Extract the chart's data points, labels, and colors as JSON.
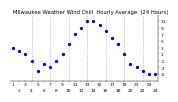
{
  "title": "Milwaukee Weather Wind Chill  Hourly Average  (24 Hours)",
  "hours": [
    1,
    2,
    3,
    4,
    5,
    6,
    7,
    8,
    9,
    10,
    11,
    12,
    13,
    14,
    15,
    16,
    17,
    18,
    19,
    20,
    21,
    22,
    23,
    24
  ],
  "wind_chill": [
    3,
    2,
    1,
    -1,
    -4,
    -2,
    -3,
    -1,
    1,
    4,
    7,
    9,
    11,
    11,
    10,
    8,
    6,
    4,
    1,
    -2,
    -3,
    -4,
    -5,
    -5
  ],
  "dot_color": "#0000cc",
  "bg_color": "#ffffff",
  "grid_color": "#999999",
  "title_color": "#000000",
  "ylim": [
    -7,
    13
  ],
  "yticks": [
    11,
    9,
    7,
    5,
    3,
    1,
    -1,
    -3,
    -5
  ],
  "grid_positions": [
    4,
    7,
    10,
    13,
    16,
    19,
    22
  ],
  "title_fontsize": 3.8,
  "tick_fontsize": 3.2,
  "marker_size": 1.8
}
